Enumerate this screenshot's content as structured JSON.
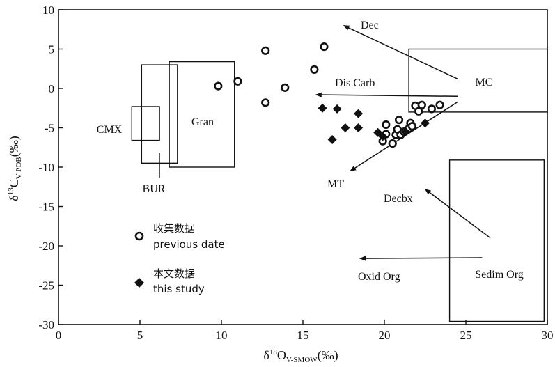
{
  "chart_data": {
    "type": "scatter",
    "xlim": [
      0,
      30
    ],
    "ylim": [
      -30,
      10
    ],
    "xticks": [
      0,
      5,
      10,
      15,
      20,
      25,
      30
    ],
    "yticks": [
      10,
      5,
      0,
      -5,
      -10,
      -15,
      -20,
      -25,
      -30
    ],
    "xlabel": {
      "main": "δ",
      "sup": "18",
      "letter": "O",
      "sub": "V-SMOW",
      "unit": "(‰)"
    },
    "ylabel": {
      "main": "δ",
      "sup": "13",
      "letter": "C",
      "sub": "V-PDB",
      "unit": "(‰)"
    },
    "series": [
      {
        "name": "收集数据 previous date",
        "marker": "open-circle",
        "points": [
          [
            9.8,
            0.3
          ],
          [
            11.0,
            0.9
          ],
          [
            12.7,
            4.8
          ],
          [
            12.7,
            -1.8
          ],
          [
            13.9,
            0.1
          ],
          [
            15.7,
            2.4
          ],
          [
            16.3,
            5.3
          ],
          [
            19.9,
            -6.7
          ],
          [
            20.1,
            -4.6
          ],
          [
            20.1,
            -5.8
          ],
          [
            20.5,
            -7.0
          ],
          [
            20.7,
            -5.9
          ],
          [
            20.8,
            -5.2
          ],
          [
            20.9,
            -4.0
          ],
          [
            21.0,
            -5.9
          ],
          [
            21.2,
            -5.5
          ],
          [
            21.5,
            -5.1
          ],
          [
            21.6,
            -4.4
          ],
          [
            21.7,
            -4.8
          ],
          [
            21.9,
            -2.2
          ],
          [
            22.1,
            -2.9
          ],
          [
            22.3,
            -2.1
          ],
          [
            22.9,
            -2.6
          ],
          [
            23.4,
            -2.1
          ]
        ]
      },
      {
        "name": "本文数据 this study",
        "marker": "filled-diamond",
        "points": [
          [
            16.2,
            -2.5
          ],
          [
            16.8,
            -6.5
          ],
          [
            17.1,
            -2.6
          ],
          [
            17.6,
            -5.0
          ],
          [
            18.4,
            -3.2
          ],
          [
            18.4,
            -5.0
          ],
          [
            19.6,
            -5.6
          ],
          [
            19.9,
            -6.1
          ],
          [
            21.3,
            -5.5
          ],
          [
            22.5,
            -4.4
          ]
        ]
      }
    ],
    "regions": [
      {
        "label": "CMX",
        "x0": 4.5,
        "x1": 6.2,
        "y0": -6.6,
        "y1": -2.3
      },
      {
        "label": "BUR",
        "x0": 5.1,
        "x1": 7.3,
        "y0": -9.5,
        "y1": 3.0
      },
      {
        "label": "Gran",
        "x0": 6.8,
        "x1": 10.8,
        "y0": -10.0,
        "y1": 3.4
      },
      {
        "label": "MC",
        "x0": 21.5,
        "x1": 30.0,
        "y0": -3.0,
        "y1": 5.0
      },
      {
        "label": "Sedim Org",
        "x0": 24.0,
        "x1": 29.8,
        "y0": -29.6,
        "y1": -9.1
      }
    ],
    "trend_arrows": [
      {
        "label": "Dec",
        "from": [
          24.5,
          1.2
        ],
        "to": [
          17.5,
          8.0
        ]
      },
      {
        "label": "Dis Carb",
        "from": [
          24.5,
          -1.0
        ],
        "to": [
          15.8,
          -0.8
        ]
      },
      {
        "label": "MT",
        "from": [
          24.5,
          -1.7
        ],
        "to": [
          17.9,
          -10.5
        ]
      },
      {
        "label": "Decbx",
        "from": [
          26.5,
          -19.0
        ],
        "to": [
          22.5,
          -12.8
        ]
      },
      {
        "label": "Oxid Org",
        "from": [
          26.0,
          -21.5
        ],
        "to": [
          18.5,
          -21.6
        ]
      }
    ],
    "legend": [
      {
        "symbol": "open-circle",
        "label_cn": "收集数据",
        "label_en": "previous date"
      },
      {
        "symbol": "filled-diamond",
        "label_cn": "本文数据",
        "label_en": "this study"
      }
    ],
    "grid": false,
    "legend_placement": "lower-left inside plot"
  }
}
